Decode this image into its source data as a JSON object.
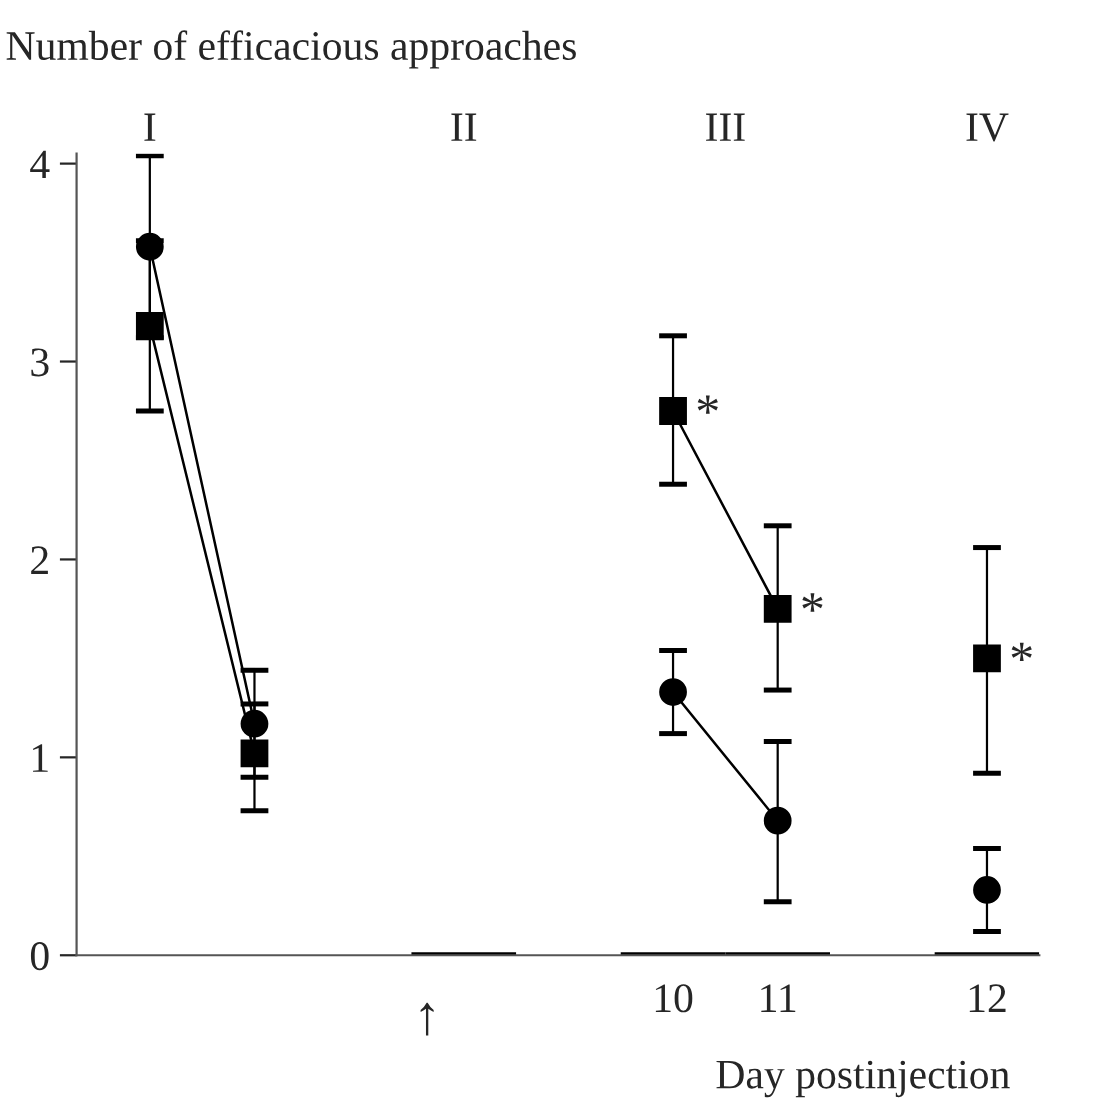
{
  "chart_data": {
    "type": "line",
    "ylabel": "Number of efficacious approaches",
    "xlabel": "Day postinjection",
    "categories": [
      null,
      null,
      null,
      null,
      null,
      "10",
      "11",
      null,
      "12"
    ],
    "series": [
      {
        "color": "#000000",
        "marker": "circle",
        "values": [
          3.58,
          1.17,
          null,
          null,
          null,
          1.33,
          0.68,
          null,
          0.33
        ],
        "errors": [
          [
            3.12,
            4.04
          ],
          [
            0.9,
            1.44
          ],
          null,
          null,
          null,
          [
            1.12,
            1.54
          ],
          [
            0.27,
            1.08
          ],
          null,
          [
            0.12,
            0.54
          ]
        ]
      },
      {
        "color": "#000000",
        "marker": "square",
        "values": [
          3.18,
          1.02,
          null,
          null,
          null,
          2.75,
          1.75,
          null,
          1.5
        ],
        "errors": [
          [
            2.75,
            3.61
          ],
          [
            0.73,
            1.27
          ],
          null,
          null,
          null,
          [
            2.38,
            3.13
          ],
          [
            1.34,
            2.17
          ],
          null,
          [
            0.92,
            2.06
          ]
        ]
      },
      {
        "type": "bar",
        "color": "#000000",
        "values": [
          null,
          null,
          null,
          0,
          null,
          0,
          0,
          null,
          0
        ]
      }
    ],
    "ylim": [
      0,
      4.05
    ],
    "yticks": [
      0,
      1,
      2,
      3,
      4
    ],
    "grid": false,
    "legend": false,
    "annotations": [
      "I",
      "II",
      "III",
      "IV",
      "↑",
      {
        "text": "*",
        "x": "10",
        "y": 2.75
      },
      {
        "text": "*",
        "x": "11",
        "y": 1.75
      },
      {
        "text": "*",
        "x": "12",
        "y": 1.5
      }
    ]
  }
}
